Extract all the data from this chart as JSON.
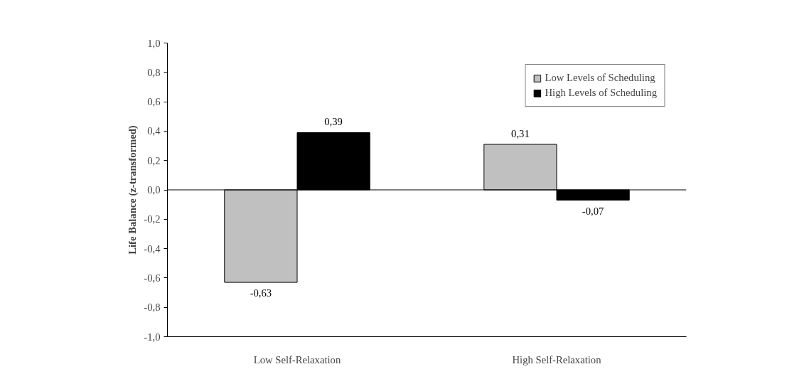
{
  "chart_data": {
    "type": "bar",
    "ylabel": "Life Balance (z-transformed)",
    "categories": [
      "Low Self-Relaxation",
      "High Self-Relaxation"
    ],
    "series": [
      {
        "name": "Low Levels of Scheduling",
        "color": "#c0c0c0",
        "values": [
          -0.63,
          0.31
        ],
        "value_labels": [
          "-0,63",
          "0,31"
        ]
      },
      {
        "name": "High Levels of Scheduling",
        "color": "#000000",
        "values": [
          0.39,
          -0.07
        ],
        "value_labels": [
          "0,39",
          "-0,07"
        ]
      }
    ],
    "ylim": [
      -1,
      1
    ],
    "yticks": [
      {
        "value": -1,
        "label": "-1,0"
      },
      {
        "value": -0.8,
        "label": "-0,8"
      },
      {
        "value": -0.6,
        "label": "-0,6"
      },
      {
        "value": -0.4,
        "label": "-0,4"
      },
      {
        "value": -0.2,
        "label": "-0,2"
      },
      {
        "value": 0,
        "label": "0,0"
      },
      {
        "value": 0.2,
        "label": "0,2"
      },
      {
        "value": 0.4,
        "label": "0,4"
      },
      {
        "value": 0.6,
        "label": "0,6"
      },
      {
        "value": 0.8,
        "label": "0,8"
      },
      {
        "value": 1,
        "label": "1,0"
      }
    ],
    "ref_lines": [
      {
        "axis": "y",
        "value": 0,
        "color": "#000000"
      }
    ],
    "grid": false,
    "legend": "top right"
  }
}
